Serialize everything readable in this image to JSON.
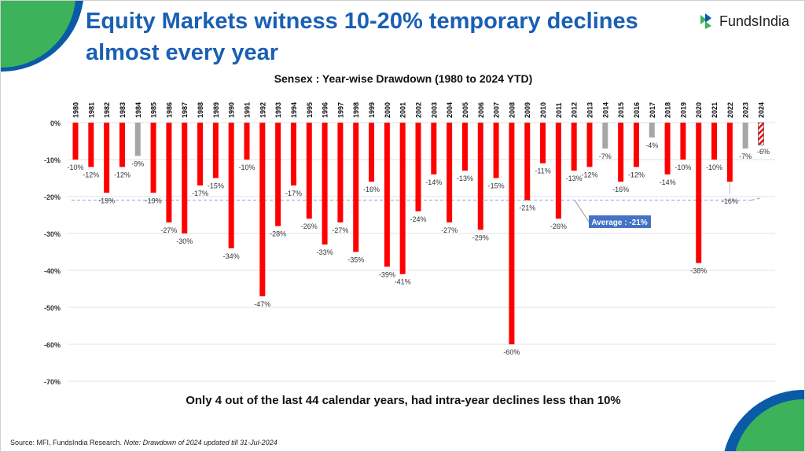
{
  "header": {
    "title_line1": "Equity Markets witness 10-20% temporary declines",
    "title_line2": "almost every year",
    "logo_text": "FundsIndia"
  },
  "footer": {
    "subtitle": "Only 4 out of the last 44 calendar years, had intra-year declines less than 10%",
    "source": "Source: MFI, FundsIndia Research.",
    "note": "Note: Drawdown of 2024 updated till 31-Jul-2024"
  },
  "colors": {
    "title": "#1a5fb4",
    "bar": "#ff0000",
    "bar_under_10": "#a6a6a6",
    "average_line": "#8faadc",
    "average_label_bg": "#4472c4",
    "green": "#3cb35a",
    "blue": "#0b5aa8"
  },
  "chart_data": {
    "type": "bar",
    "title": "Sensex : Year-wise Drawdown (1980 to 2024 YTD)",
    "categories": [
      "1980",
      "1981",
      "1982",
      "1983",
      "1984",
      "1985",
      "1986",
      "1987",
      "1988",
      "1989",
      "1990",
      "1991",
      "1992",
      "1993",
      "1994",
      "1995",
      "1996",
      "1997",
      "1998",
      "1999",
      "2000",
      "2001",
      "2002",
      "2003",
      "2004",
      "2005",
      "2006",
      "2007",
      "2008",
      "2009",
      "2010",
      "2011",
      "2012",
      "2013",
      "2014",
      "2015",
      "2016",
      "2017",
      "2018",
      "2019",
      "2020",
      "2021",
      "2022",
      "2023",
      "2024"
    ],
    "values": [
      -10,
      -12,
      -19,
      -12,
      -9,
      -19,
      -27,
      -30,
      -17,
      -15,
      -34,
      -10,
      -47,
      -28,
      -17,
      -26,
      -33,
      -27,
      -35,
      -16,
      -39,
      -41,
      -24,
      -14,
      -27,
      -13,
      -29,
      -15,
      -60,
      -21,
      -11,
      -26,
      -13,
      -12,
      -7,
      -16,
      -12,
      -4,
      -14,
      -10,
      -38,
      -10,
      -16,
      -7,
      -6
    ],
    "highlight_gray": [
      "1984",
      "2014",
      "2017",
      "2023"
    ],
    "hatched": [
      "2024"
    ],
    "ylim": [
      -70,
      0
    ],
    "yticks": [
      "0%",
      "-10%",
      "-20%",
      "-30%",
      "-40%",
      "-50%",
      "-60%",
      "-70%"
    ],
    "average": -21,
    "average_label": "Average : -21%",
    "grid": true
  }
}
